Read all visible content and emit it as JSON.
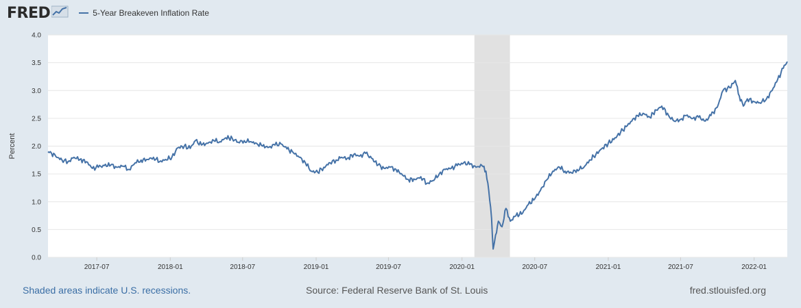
{
  "header": {
    "logo": "FRED",
    "logo_icon": "chart-line-icon",
    "legend_label": "5-Year Breakeven Inflation Rate"
  },
  "footer": {
    "recession_note": "Shaded areas indicate U.S. recessions.",
    "source": "Source: Federal Reserve Bank of St. Louis",
    "url": "fred.stlouisfed.org"
  },
  "colors": {
    "line": "#4572a7",
    "recession": "#e1e1e1",
    "page_background": "#e1e9f0",
    "plot_background": "#ffffff",
    "grid": "#e6e6e6"
  },
  "chart_data": {
    "type": "line",
    "title": "",
    "xlabel": "",
    "ylabel": "Percent",
    "ylim": [
      0,
      4
    ],
    "yticks": [
      "0.0",
      "0.5",
      "1.0",
      "1.5",
      "2.0",
      "2.5",
      "3.0",
      "3.5",
      "4.0"
    ],
    "xlim": [
      "2017-03-01",
      "2022-03-25"
    ],
    "xticks": [
      "2017-07",
      "2018-01",
      "2018-07",
      "2019-01",
      "2019-07",
      "2020-01",
      "2020-07",
      "2021-01",
      "2021-07",
      "2022-01"
    ],
    "grid": true,
    "legend": "top-left",
    "recessions": [
      {
        "start": "2020-02-01",
        "end": "2020-04-30"
      }
    ],
    "series": [
      {
        "name": "5-Year Breakeven Inflation Rate",
        "points": [
          [
            "2017-03-01",
            1.9
          ],
          [
            "2017-03-10",
            1.87
          ],
          [
            "2017-03-20",
            1.82
          ],
          [
            "2017-04-05",
            1.75
          ],
          [
            "2017-04-20",
            1.72
          ],
          [
            "2017-05-05",
            1.8
          ],
          [
            "2017-05-20",
            1.76
          ],
          [
            "2017-06-05",
            1.72
          ],
          [
            "2017-06-20",
            1.6
          ],
          [
            "2017-07-05",
            1.62
          ],
          [
            "2017-07-20",
            1.65
          ],
          [
            "2017-08-05",
            1.66
          ],
          [
            "2017-08-20",
            1.62
          ],
          [
            "2017-09-05",
            1.64
          ],
          [
            "2017-09-20",
            1.58
          ],
          [
            "2017-10-05",
            1.7
          ],
          [
            "2017-10-20",
            1.75
          ],
          [
            "2017-11-05",
            1.76
          ],
          [
            "2017-11-20",
            1.8
          ],
          [
            "2017-12-05",
            1.72
          ],
          [
            "2017-12-20",
            1.76
          ],
          [
            "2018-01-05",
            1.8
          ],
          [
            "2018-01-20",
            1.97
          ],
          [
            "2018-02-05",
            2.0
          ],
          [
            "2018-02-20",
            1.96
          ],
          [
            "2018-03-05",
            2.1
          ],
          [
            "2018-03-20",
            2.02
          ],
          [
            "2018-04-05",
            2.05
          ],
          [
            "2018-04-20",
            2.1
          ],
          [
            "2018-05-05",
            2.08
          ],
          [
            "2018-05-20",
            2.15
          ],
          [
            "2018-06-05",
            2.14
          ],
          [
            "2018-06-20",
            2.07
          ],
          [
            "2018-07-05",
            2.1
          ],
          [
            "2018-07-20",
            2.08
          ],
          [
            "2018-08-05",
            2.05
          ],
          [
            "2018-08-20",
            2.0
          ],
          [
            "2018-09-05",
            1.98
          ],
          [
            "2018-09-20",
            2.02
          ],
          [
            "2018-10-05",
            2.04
          ],
          [
            "2018-10-20",
            1.95
          ],
          [
            "2018-11-05",
            1.88
          ],
          [
            "2018-11-20",
            1.8
          ],
          [
            "2018-12-05",
            1.7
          ],
          [
            "2018-12-20",
            1.55
          ],
          [
            "2019-01-05",
            1.53
          ],
          [
            "2019-01-20",
            1.62
          ],
          [
            "2019-02-05",
            1.7
          ],
          [
            "2019-02-20",
            1.75
          ],
          [
            "2019-03-05",
            1.8
          ],
          [
            "2019-03-20",
            1.78
          ],
          [
            "2019-04-05",
            1.85
          ],
          [
            "2019-04-20",
            1.82
          ],
          [
            "2019-05-05",
            1.87
          ],
          [
            "2019-05-20",
            1.78
          ],
          [
            "2019-06-05",
            1.66
          ],
          [
            "2019-06-20",
            1.6
          ],
          [
            "2019-07-05",
            1.62
          ],
          [
            "2019-07-20",
            1.58
          ],
          [
            "2019-08-05",
            1.48
          ],
          [
            "2019-08-20",
            1.4
          ],
          [
            "2019-09-05",
            1.4
          ],
          [
            "2019-09-20",
            1.45
          ],
          [
            "2019-10-05",
            1.33
          ],
          [
            "2019-10-20",
            1.38
          ],
          [
            "2019-11-05",
            1.5
          ],
          [
            "2019-11-20",
            1.58
          ],
          [
            "2019-12-05",
            1.6
          ],
          [
            "2019-12-20",
            1.65
          ],
          [
            "2020-01-05",
            1.7
          ],
          [
            "2020-01-20",
            1.67
          ],
          [
            "2020-02-05",
            1.62
          ],
          [
            "2020-02-20",
            1.65
          ],
          [
            "2020-03-01",
            1.55
          ],
          [
            "2020-03-08",
            1.2
          ],
          [
            "2020-03-15",
            0.7
          ],
          [
            "2020-03-19",
            0.15
          ],
          [
            "2020-03-25",
            0.4
          ],
          [
            "2020-04-01",
            0.65
          ],
          [
            "2020-04-10",
            0.55
          ],
          [
            "2020-04-20",
            0.88
          ],
          [
            "2020-05-01",
            0.65
          ],
          [
            "2020-05-15",
            0.75
          ],
          [
            "2020-06-01",
            0.8
          ],
          [
            "2020-06-15",
            0.95
          ],
          [
            "2020-07-01",
            1.05
          ],
          [
            "2020-07-15",
            1.2
          ],
          [
            "2020-08-01",
            1.4
          ],
          [
            "2020-08-15",
            1.55
          ],
          [
            "2020-09-01",
            1.62
          ],
          [
            "2020-09-15",
            1.55
          ],
          [
            "2020-10-01",
            1.52
          ],
          [
            "2020-10-15",
            1.58
          ],
          [
            "2020-11-01",
            1.62
          ],
          [
            "2020-11-15",
            1.75
          ],
          [
            "2020-12-01",
            1.85
          ],
          [
            "2020-12-15",
            1.95
          ],
          [
            "2021-01-01",
            2.05
          ],
          [
            "2021-01-15",
            2.12
          ],
          [
            "2021-02-01",
            2.25
          ],
          [
            "2021-02-15",
            2.35
          ],
          [
            "2021-03-01",
            2.45
          ],
          [
            "2021-03-15",
            2.55
          ],
          [
            "2021-04-01",
            2.58
          ],
          [
            "2021-04-15",
            2.52
          ],
          [
            "2021-05-01",
            2.65
          ],
          [
            "2021-05-15",
            2.72
          ],
          [
            "2021-06-01",
            2.55
          ],
          [
            "2021-06-15",
            2.45
          ],
          [
            "2021-07-01",
            2.48
          ],
          [
            "2021-07-15",
            2.55
          ],
          [
            "2021-08-01",
            2.5
          ],
          [
            "2021-08-15",
            2.52
          ],
          [
            "2021-09-01",
            2.45
          ],
          [
            "2021-09-15",
            2.55
          ],
          [
            "2021-10-01",
            2.7
          ],
          [
            "2021-10-15",
            3.0
          ],
          [
            "2021-11-01",
            3.05
          ],
          [
            "2021-11-15",
            3.18
          ],
          [
            "2021-11-25",
            2.9
          ],
          [
            "2021-12-05",
            2.72
          ],
          [
            "2021-12-15",
            2.85
          ],
          [
            "2022-01-01",
            2.8
          ],
          [
            "2022-01-15",
            2.78
          ],
          [
            "2022-02-01",
            2.85
          ],
          [
            "2022-02-15",
            3.0
          ],
          [
            "2022-03-01",
            3.2
          ],
          [
            "2022-03-15",
            3.4
          ],
          [
            "2022-03-25",
            3.52
          ]
        ]
      }
    ]
  }
}
